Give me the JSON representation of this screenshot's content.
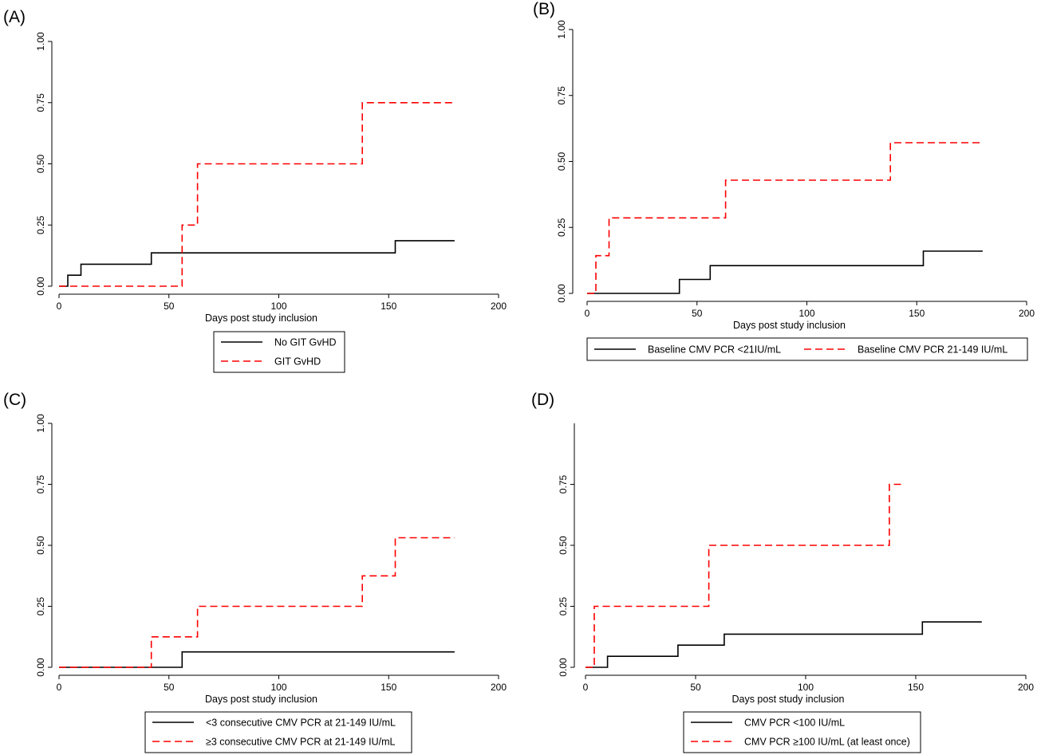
{
  "colors": {
    "group_1": "#000000",
    "group_2": "#ff0000"
  },
  "chart_data": [
    {
      "type": "line",
      "panel_label": "(A)",
      "xlabel": "Days post study inclusion",
      "ylabel": "",
      "xlim": [
        0,
        200
      ],
      "ylim": [
        0,
        1
      ],
      "xticks": [
        0,
        50,
        100,
        150,
        200
      ],
      "yticks": [
        0,
        0.25,
        0.5,
        0.75,
        1.0
      ],
      "ytick_labels": [
        "0.00",
        "0.25",
        "0.50",
        "0.75",
        "1.00"
      ],
      "grid": false,
      "legend_position": "below",
      "series": [
        {
          "name": "No GIT GvHD",
          "color": "#000000",
          "dash": "solid",
          "x": [
            0,
            4,
            4,
            10,
            10,
            42,
            42,
            153,
            153,
            180
          ],
          "y": [
            0,
            0,
            0.045,
            0.045,
            0.09,
            0.09,
            0.136,
            0.136,
            0.186,
            0.186
          ]
        },
        {
          "name": "GIT GvHD",
          "color": "#ff0000",
          "dash": "dashed",
          "x": [
            0,
            56,
            56,
            63,
            63,
            138,
            138,
            180
          ],
          "y": [
            0,
            0,
            0.25,
            0.25,
            0.5,
            0.5,
            0.75,
            0.75
          ]
        }
      ]
    },
    {
      "type": "line",
      "panel_label": "(B)",
      "xlabel": "Days post study inclusion",
      "ylabel": "",
      "xlim": [
        0,
        200
      ],
      "ylim": [
        0,
        1
      ],
      "xticks": [
        0,
        50,
        100,
        150,
        200
      ],
      "yticks": [
        0,
        0.25,
        0.5,
        0.75,
        1.0
      ],
      "ytick_labels": [
        "0.00",
        "0.25",
        "0.50",
        "0.75",
        "1.00"
      ],
      "grid": false,
      "legend_position": "below",
      "series": [
        {
          "name": "Baseline CMV PCR <21IU/mL",
          "color": "#000000",
          "dash": "solid",
          "x": [
            0,
            42,
            42,
            56,
            56,
            153,
            153,
            180
          ],
          "y": [
            0,
            0,
            0.053,
            0.053,
            0.105,
            0.105,
            0.16,
            0.16
          ]
        },
        {
          "name": "Baseline CMV PCR 21-149 IU/mL",
          "color": "#ff0000",
          "dash": "dashed",
          "x": [
            0,
            4,
            4,
            10,
            10,
            63,
            63,
            138,
            138,
            180
          ],
          "y": [
            0,
            0,
            0.143,
            0.143,
            0.286,
            0.286,
            0.429,
            0.429,
            0.571,
            0.571
          ]
        }
      ]
    },
    {
      "type": "line",
      "panel_label": "(C)",
      "xlabel": "Days post study inclusion",
      "ylabel": "",
      "xlim": [
        0,
        200
      ],
      "ylim": [
        0,
        1
      ],
      "xticks": [
        0,
        50,
        100,
        150,
        200
      ],
      "yticks": [
        0,
        0.25,
        0.5,
        0.75,
        1.0
      ],
      "ytick_labels": [
        "0.00",
        "0.25",
        "0.50",
        "0.75",
        "1.00"
      ],
      "grid": false,
      "legend_position": "below",
      "series": [
        {
          "name": "<3 consecutive CMV PCR at 21-149 IU/mL",
          "color": "#000000",
          "dash": "solid",
          "x": [
            0,
            56,
            56,
            180
          ],
          "y": [
            0,
            0,
            0.063,
            0.063
          ]
        },
        {
          "name": "≥3 consecutive CMV PCR at 21-149 IU/mL",
          "color": "#ff0000",
          "dash": "dashed",
          "x": [
            0,
            42,
            42,
            63,
            63,
            138,
            138,
            153,
            153,
            180
          ],
          "y": [
            0,
            0,
            0.125,
            0.125,
            0.25,
            0.25,
            0.375,
            0.375,
            0.531,
            0.531
          ]
        }
      ]
    },
    {
      "type": "line",
      "panel_label": "(D)",
      "xlabel": "Days post study inclusion",
      "ylabel": "",
      "xlim": [
        0,
        200
      ],
      "ylim": [
        0,
        1
      ],
      "xticks": [
        0,
        50,
        100,
        150,
        200
      ],
      "yticks": [
        0,
        0.25,
        0.5,
        0.75
      ],
      "ytick_labels": [
        "0.00",
        "0.25",
        "0.50",
        "0.75"
      ],
      "grid": false,
      "legend_position": "below",
      "series": [
        {
          "name": "CMV PCR <100 IU/mL",
          "color": "#000000",
          "dash": "solid",
          "x": [
            0,
            10,
            10,
            42,
            42,
            63,
            63,
            153,
            153,
            180
          ],
          "y": [
            0,
            0,
            0.045,
            0.045,
            0.091,
            0.091,
            0.136,
            0.136,
            0.186,
            0.186
          ]
        },
        {
          "name": "CMV PCR ≥100 IU/mL (at least once)",
          "color": "#ff0000",
          "dash": "dashed",
          "x": [
            0,
            4,
            4,
            56,
            56,
            138,
            138,
            145
          ],
          "y": [
            0,
            0,
            0.25,
            0.25,
            0.5,
            0.5,
            0.75,
            0.75
          ]
        }
      ]
    }
  ]
}
